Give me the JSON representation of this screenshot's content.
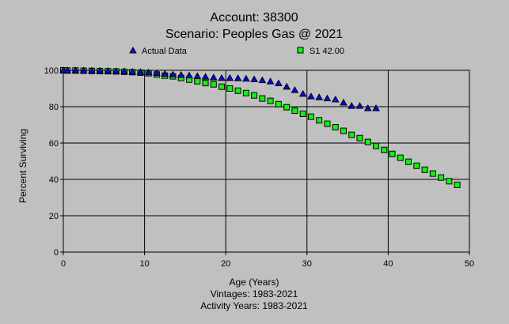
{
  "chart_data": {
    "type": "scatter",
    "title": "Account: 38300",
    "subtitle": "Scenario: Peoples Gas @ 2021",
    "xlabel": "Age (Years)",
    "ylabel": "Percent Surviving",
    "footer": [
      "Vintages: 1983-2021",
      "Activity Years: 1983-2021"
    ],
    "xlim": [
      0,
      50
    ],
    "ylim": [
      0,
      100
    ],
    "xticks": [
      "0",
      "10",
      "20",
      "30",
      "40",
      "50"
    ],
    "yticks": [
      "0",
      "20",
      "40",
      "60",
      "80",
      "100"
    ],
    "grid": true,
    "legend_position": "top",
    "series": [
      {
        "name": "Actual Data",
        "marker": "triangle",
        "color": "#0000ff",
        "x": [
          0,
          0.5,
          1.5,
          2.5,
          3.5,
          4.5,
          5.5,
          6.5,
          7.5,
          8.5,
          9.5,
          10.5,
          11.5,
          12.5,
          13.5,
          14.5,
          15.5,
          16.5,
          17.5,
          18.5,
          19.5,
          20.5,
          21.5,
          22.5,
          23.5,
          24.5,
          25.5,
          26.5,
          27.5,
          28.5,
          29.5,
          30.5,
          31.5,
          32.5,
          33.5,
          34.5,
          35.5,
          36.5,
          37.5,
          38.5
        ],
        "y": [
          100,
          99.9,
          99.9,
          99.8,
          99.8,
          99.7,
          99.6,
          99.5,
          99.4,
          99.2,
          99.0,
          98.8,
          98.4,
          98.0,
          97.6,
          97.4,
          97.1,
          96.8,
          96.4,
          96.0,
          95.7,
          95.7,
          95.6,
          95.3,
          95.0,
          94.5,
          93.8,
          92.8,
          90.9,
          89.1,
          87.0,
          85.6,
          85.1,
          84.5,
          83.9,
          82.2,
          80.4,
          80.4,
          79.1,
          79.1
        ]
      },
      {
        "name": "S1 42.00",
        "marker": "square",
        "color": "#00ff00",
        "x": [
          0,
          0.5,
          1.5,
          2.5,
          3.5,
          4.5,
          5.5,
          6.5,
          7.5,
          8.5,
          9.5,
          10.5,
          11.5,
          12.5,
          13.5,
          14.5,
          15.5,
          16.5,
          17.5,
          18.5,
          19.5,
          20.5,
          21.5,
          22.5,
          23.5,
          24.5,
          25.5,
          26.5,
          27.5,
          28.5,
          29.5,
          30.5,
          31.5,
          32.5,
          33.5,
          34.5,
          35.5,
          36.5,
          37.5,
          38.5,
          39.5,
          40.5,
          41.5,
          42.5,
          43.5,
          44.5,
          45.5,
          46.5,
          47.5,
          48.5
        ],
        "y": [
          100,
          99.9,
          99.9,
          99.8,
          99.7,
          99.6,
          99.5,
          99.4,
          99.2,
          99.0,
          98.7,
          98.4,
          97.7,
          97.1,
          96.7,
          95.8,
          94.9,
          94.0,
          93.0,
          92.3,
          91.0,
          90.0,
          88.8,
          87.5,
          86.2,
          84.5,
          83.2,
          81.4,
          79.7,
          77.8,
          76.1,
          74.5,
          72.5,
          70.6,
          68.7,
          66.7,
          64.5,
          62.7,
          60.6,
          58.4,
          56.2,
          54.0,
          51.9,
          49.7,
          47.5,
          45.3,
          43.2,
          41.0,
          39.0,
          37.0
        ]
      }
    ]
  }
}
